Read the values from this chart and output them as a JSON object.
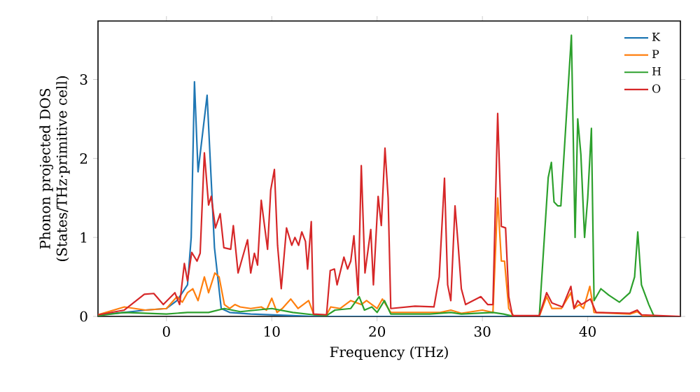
{
  "chart_data": {
    "type": "line",
    "xlabel": "Frequency (THz)",
    "ylabel": "Phonon projected DOS (States/THz·primitive cell)",
    "xlim": [
      -6.5,
      48.8
    ],
    "ylim": [
      0,
      3.74
    ],
    "xticks": [
      0,
      10,
      20,
      30,
      40
    ],
    "yticks": [
      0,
      1,
      2,
      3
    ],
    "legend": "top right",
    "grid": false,
    "marker": "none",
    "line_style": "solid",
    "series": [
      {
        "name": "K",
        "color": "#1f77b4",
        "x": [
          -6.5,
          -4,
          -2,
          0,
          1,
          2,
          2.35,
          2.66,
          3.0,
          3.86,
          4.56,
          5.2,
          6,
          8,
          12,
          14,
          48.8
        ],
        "values": [
          0.02,
          0.05,
          0.08,
          0.1,
          0.2,
          0.4,
          1.0,
          2.97,
          1.83,
          2.8,
          0.87,
          0.1,
          0.05,
          0.03,
          0.01,
          0,
          0
        ]
      },
      {
        "name": "P",
        "color": "#ff7f0e",
        "x": [
          -6.5,
          -4,
          -2,
          0,
          1,
          1.5,
          2,
          2.5,
          3,
          3.6,
          4,
          4.6,
          5,
          5.5,
          6,
          6.5,
          7,
          8,
          9,
          9.5,
          10,
          10.5,
          11,
          11.8,
          12.5,
          13.5,
          14,
          15.2,
          15.6,
          16.5,
          17.5,
          18.5,
          19,
          20,
          20.5,
          21.3,
          26,
          27,
          28,
          30,
          31,
          31.45,
          31.8,
          32.1,
          32.5,
          33,
          35.4,
          36.1,
          36.6,
          37.5,
          38.4,
          38.7,
          39.2,
          39.6,
          40.2,
          40.6,
          44,
          44.7,
          45.3,
          48.8
        ],
        "values": [
          0.02,
          0.12,
          0.08,
          0.1,
          0.25,
          0.18,
          0.3,
          0.35,
          0.2,
          0.5,
          0.3,
          0.55,
          0.5,
          0.15,
          0.1,
          0.15,
          0.12,
          0.1,
          0.12,
          0.08,
          0.23,
          0.05,
          0.1,
          0.22,
          0.1,
          0.2,
          0.02,
          0.02,
          0.12,
          0.1,
          0.2,
          0.15,
          0.2,
          0.1,
          0.22,
          0.05,
          0.05,
          0.08,
          0.04,
          0.08,
          0.05,
          1.5,
          0.7,
          0.7,
          0.1,
          0,
          0,
          0.25,
          0.1,
          0.1,
          0.3,
          0.1,
          0.15,
          0.1,
          0.38,
          0.05,
          0.03,
          0.06,
          0,
          0
        ]
      },
      {
        "name": "H",
        "color": "#2ca02c",
        "x": [
          -6.5,
          -4,
          0,
          2,
          4,
          5.5,
          7,
          10,
          12,
          14,
          15.2,
          16,
          17.5,
          18.3,
          18.8,
          19.5,
          20,
          20.7,
          21.3,
          25,
          27,
          28,
          31,
          32,
          33,
          35.4,
          36.25,
          36.55,
          36.8,
          37.15,
          37.45,
          38.45,
          38.8,
          39.05,
          39.35,
          39.7,
          40.0,
          40.35,
          40.6,
          41.25,
          42.0,
          43.0,
          44.0,
          44.45,
          44.75,
          45.1,
          45.8,
          46.3,
          48.8
        ],
        "values": [
          0.01,
          0.05,
          0.03,
          0.05,
          0.05,
          0.1,
          0.06,
          0.1,
          0.05,
          0.02,
          0.01,
          0.08,
          0.1,
          0.25,
          0.08,
          0.12,
          0.05,
          0.2,
          0.03,
          0.03,
          0.05,
          0.03,
          0.05,
          0.03,
          0,
          0,
          1.76,
          1.95,
          1.45,
          1.4,
          1.4,
          3.56,
          1.0,
          2.5,
          2.05,
          1.0,
          1.5,
          2.38,
          0.2,
          0.35,
          0.27,
          0.18,
          0.3,
          0.5,
          1.07,
          0.4,
          0.15,
          0,
          0
        ]
      },
      {
        "name": "O",
        "color": "#d62728",
        "x": [
          -6.5,
          -4,
          -2.1,
          -1.2,
          -0.3,
          0.8,
          1.25,
          1.7,
          2.0,
          2.4,
          2.9,
          3.2,
          3.6,
          4.0,
          4.25,
          4.65,
          5.1,
          5.45,
          6.1,
          6.35,
          6.8,
          7.7,
          8.0,
          8.35,
          8.65,
          9.0,
          9.6,
          9.9,
          10.25,
          10.55,
          10.9,
          11.4,
          11.9,
          12.2,
          12.55,
          12.85,
          13.2,
          13.4,
          13.75,
          13.95,
          15.2,
          15.55,
          15.95,
          16.2,
          16.85,
          17.2,
          17.5,
          17.8,
          18.2,
          18.5,
          18.85,
          19.4,
          19.65,
          20.1,
          20.4,
          20.75,
          21.05,
          21.3,
          23.6,
          25.4,
          25.9,
          26.4,
          26.7,
          27.0,
          27.4,
          27.7,
          28.0,
          28.4,
          29.85,
          30.5,
          31.0,
          31.45,
          31.8,
          32.2,
          32.5,
          32.85,
          35.4,
          36.1,
          36.6,
          37.6,
          38.4,
          38.7,
          39.05,
          39.4,
          40.25,
          40.8,
          44.0,
          44.7,
          45.1,
          48.8
        ],
        "values": [
          0.02,
          0.08,
          0.28,
          0.29,
          0.15,
          0.3,
          0.15,
          0.67,
          0.45,
          0.81,
          0.7,
          0.8,
          2.07,
          1.41,
          1.52,
          1.12,
          1.3,
          0.87,
          0.85,
          1.15,
          0.55,
          0.97,
          0.55,
          0.8,
          0.65,
          1.47,
          0.85,
          1.6,
          1.86,
          0.9,
          0.35,
          1.12,
          0.9,
          1.0,
          0.9,
          1.07,
          0.95,
          0.6,
          1.2,
          0.03,
          0.02,
          0.58,
          0.6,
          0.4,
          0.75,
          0.6,
          0.7,
          1.02,
          0.27,
          1.91,
          0.55,
          1.1,
          0.4,
          1.52,
          1.15,
          2.13,
          1.5,
          0.1,
          0.13,
          0.12,
          0.5,
          1.75,
          0.4,
          0.2,
          1.4,
          0.9,
          0.35,
          0.15,
          0.25,
          0.15,
          0.15,
          2.57,
          1.14,
          1.12,
          0.25,
          0.01,
          0.01,
          0.3,
          0.17,
          0.12,
          0.38,
          0.1,
          0.2,
          0.15,
          0.22,
          0.05,
          0.04,
          0.08,
          0.02,
          0
        ]
      }
    ]
  }
}
